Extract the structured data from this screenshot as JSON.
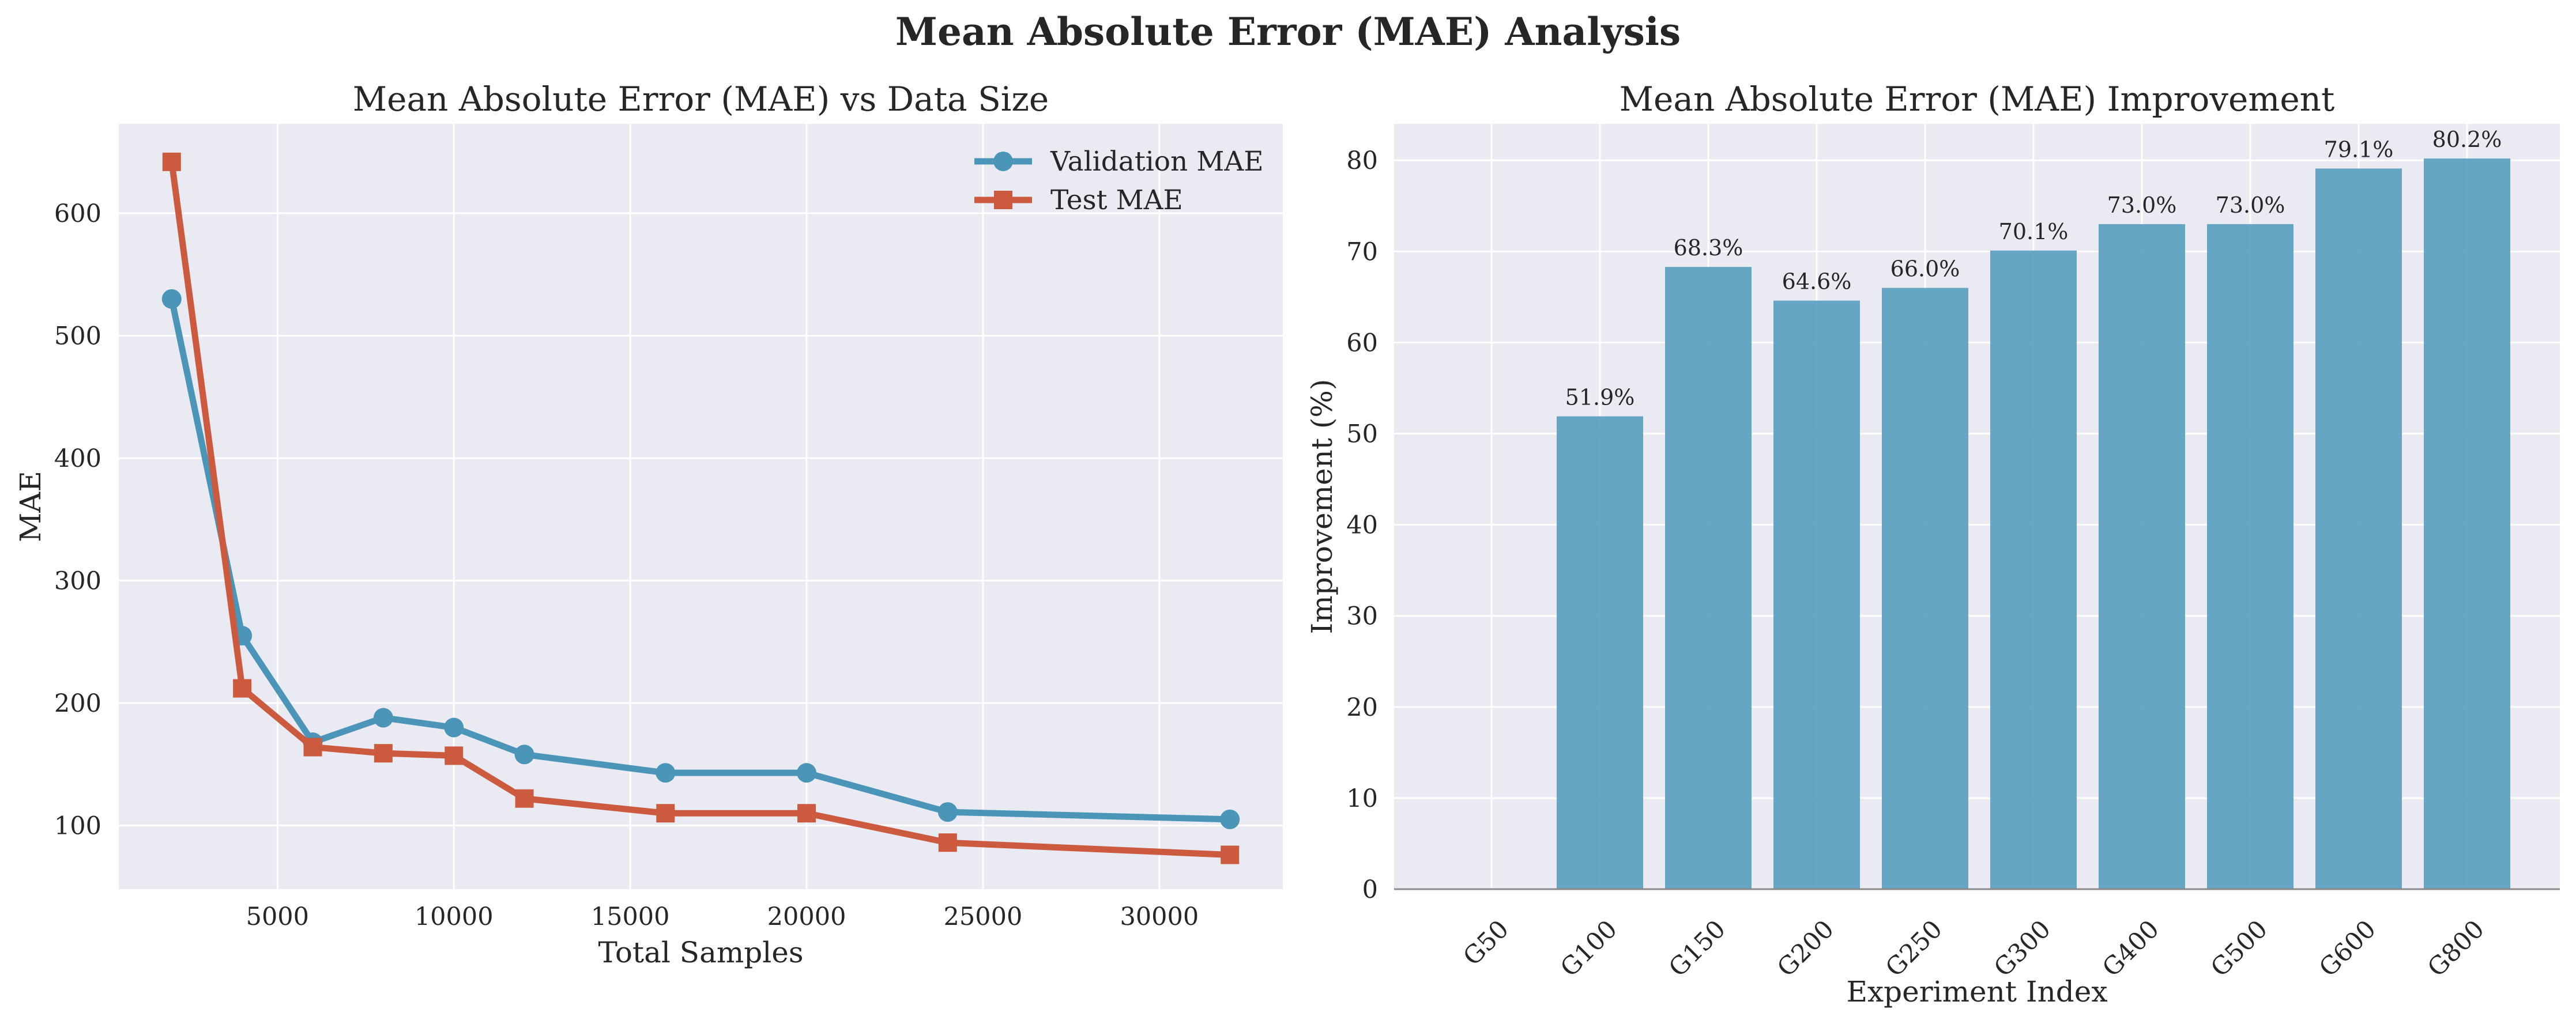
{
  "figure": {
    "title": "Mean Absolute Error (MAE) Analysis"
  },
  "colors": {
    "validation": "#4a95b8",
    "test": "#cc5a3f",
    "bar": "#5a9ebf",
    "panel_bg": "#eaeaf2",
    "grid": "#ffffff"
  },
  "chart_data": [
    {
      "type": "line",
      "title": "Mean Absolute Error (MAE) vs Data Size",
      "xlabel": "Total Samples",
      "ylabel": "MAE",
      "xlim": [
        500,
        33500
      ],
      "ylim": [
        48,
        673
      ],
      "xticks": [
        5000,
        10000,
        15000,
        20000,
        25000,
        30000
      ],
      "yticks": [
        100,
        200,
        300,
        400,
        500,
        600
      ],
      "x": [
        2000,
        4000,
        6000,
        8000,
        10000,
        12000,
        16000,
        20000,
        24000,
        32000
      ],
      "series": [
        {
          "name": "Validation MAE",
          "marker": "circle",
          "values": [
            530,
            255,
            168,
            188,
            180,
            158,
            143,
            143,
            111,
            105
          ]
        },
        {
          "name": "Test MAE",
          "marker": "square",
          "values": [
            642,
            212,
            164,
            159,
            157,
            122,
            110,
            110,
            86,
            76
          ]
        }
      ],
      "legend": "top-right",
      "grid": true
    },
    {
      "type": "bar",
      "title": "Mean Absolute Error (MAE) Improvement",
      "xlabel": "Experiment Index",
      "ylabel": "Improvement (%)",
      "categories": [
        "G50",
        "G100",
        "G150",
        "G200",
        "G250",
        "G300",
        "G400",
        "G500",
        "G600",
        "G800"
      ],
      "values": [
        0,
        51.9,
        68.3,
        64.6,
        66.0,
        70.1,
        73.0,
        73.0,
        79.1,
        80.2
      ],
      "data_labels": [
        "",
        "51.9%",
        "68.3%",
        "64.6%",
        "66.0%",
        "70.1%",
        "73.0%",
        "73.0%",
        "79.1%",
        "80.2%"
      ],
      "ylim": [
        0,
        84
      ],
      "yticks": [
        0,
        10,
        20,
        30,
        40,
        50,
        60,
        70,
        80
      ],
      "grid": true
    }
  ]
}
